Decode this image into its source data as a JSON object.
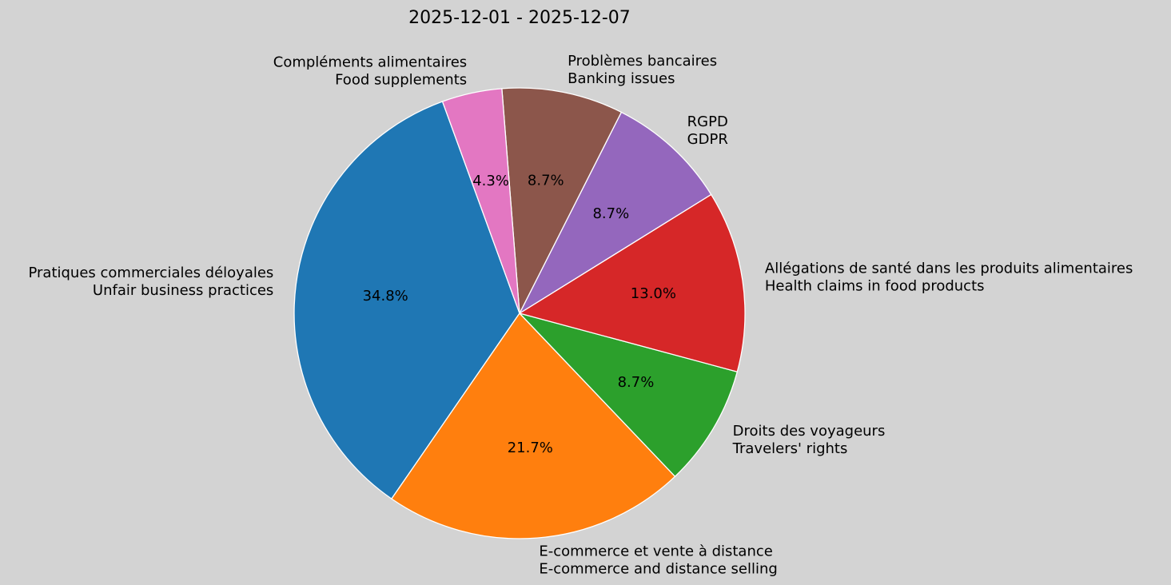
{
  "chart_data": {
    "type": "pie",
    "title": "2025-12-01 - 2025-12-07",
    "start_angle_deg": 110,
    "direction": "counterclockwise",
    "edge_color": "#ffffff",
    "slices": [
      {
        "label": [
          "Pratiques commerciales déloyales",
          "Unfair business practices"
        ],
        "value": 34.8,
        "pct_label": "34.8%",
        "color": "#1f77b4"
      },
      {
        "label": [
          "E-commerce et vente à distance",
          "E-commerce and distance selling"
        ],
        "value": 21.7,
        "pct_label": "21.7%",
        "color": "#ff7f0e"
      },
      {
        "label": [
          "Droits des voyageurs",
          "Travelers' rights"
        ],
        "value": 8.7,
        "pct_label": "8.7%",
        "color": "#2ca02c"
      },
      {
        "label": [
          "Allégations de santé dans les produits alimentaires",
          "Health claims in food products"
        ],
        "value": 13.0,
        "pct_label": "13.0%",
        "color": "#d62728"
      },
      {
        "label": [
          "RGPD",
          "GDPR"
        ],
        "value": 8.7,
        "pct_label": "8.7%",
        "color": "#9467bd"
      },
      {
        "label": [
          "Problèmes bancaires",
          "Banking issues"
        ],
        "value": 8.7,
        "pct_label": "8.7%",
        "color": "#8c564b"
      },
      {
        "label": [
          "Compléments alimentaires",
          "Food supplements"
        ],
        "value": 4.3,
        "pct_label": "4.3%",
        "color": "#e377c2"
      }
    ]
  }
}
